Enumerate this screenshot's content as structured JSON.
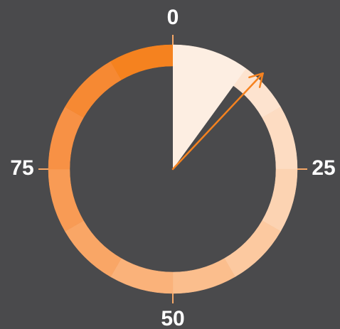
{
  "chart_data": {
    "type": "gauge",
    "value": 10,
    "needle": 12,
    "ylim": [
      0,
      100
    ],
    "yticks": [
      0,
      25,
      50,
      75
    ],
    "wedge_color": "#fdeee2",
    "needle_color": "#f5821f",
    "tick_color": "#f7a867",
    "segment_colors": [
      "#fde9da",
      "#fde3cf",
      "#fddcc2",
      "#fcd3b2",
      "#fcc9a0",
      "#fbbe8d",
      "#fab27a",
      "#f9a666",
      "#f89b55",
      "#f79145",
      "#f68933",
      "#f5821f"
    ]
  }
}
